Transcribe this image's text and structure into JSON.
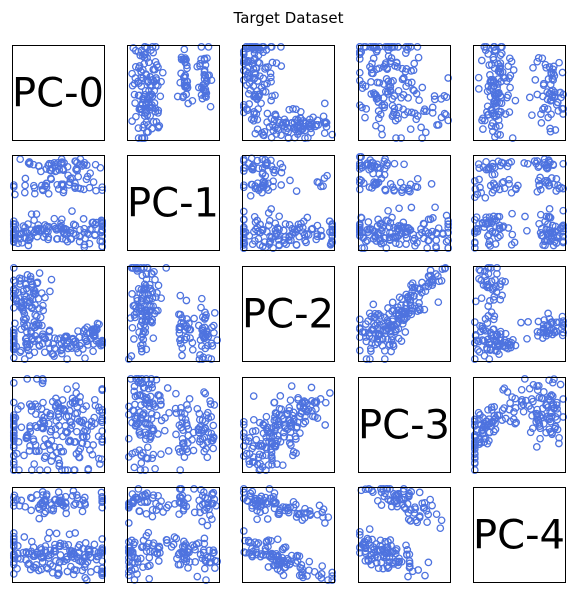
{
  "chart_data": {
    "type": "scatter",
    "subtype": "pairplot",
    "title": "Target Dataset",
    "variables": [
      "PC-0",
      "PC-1",
      "PC-2",
      "PC-3",
      "PC-4"
    ],
    "grid": false,
    "axis_ticks": false,
    "marker": "hollow-circle",
    "marker_color": "#4e73df",
    "panels": [
      {
        "row": 0,
        "col": 1,
        "x": "PC-1",
        "y": "PC-0",
        "pattern": "three vertical clusters; one large dense column on the left, two narrow columns on the right"
      },
      {
        "row": 0,
        "col": 2,
        "x": "PC-2",
        "y": "PC-0",
        "pattern": "dense mass at upper-left descending to a horizontal band along the bottom"
      },
      {
        "row": 0,
        "col": 3,
        "x": "PC-3",
        "y": "PC-0",
        "pattern": "large dense block upper-left with scattered points to the right"
      },
      {
        "row": 0,
        "col": 4,
        "x": "PC-4",
        "y": "PC-0",
        "pattern": "tall cluster on left and shorter cluster on right"
      },
      {
        "row": 1,
        "col": 0,
        "x": "PC-0",
        "y": "PC-1",
        "pattern": "two thin horizontal bands at top and one thick band at bottom"
      },
      {
        "row": 1,
        "col": 2,
        "x": "PC-2",
        "y": "PC-1",
        "pattern": "two small horizontal bands at top and a wide band at bottom"
      },
      {
        "row": 1,
        "col": 3,
        "x": "PC-3",
        "y": "PC-1",
        "pattern": "two elongated bands at top and a large band at bottom"
      },
      {
        "row": 1,
        "col": 4,
        "x": "PC-4",
        "y": "PC-1",
        "pattern": "six clusters arranged in two columns and three rows"
      },
      {
        "row": 2,
        "col": 0,
        "x": "PC-0",
        "y": "PC-2",
        "pattern": "L-shaped mass: vertical on left, horizontal band along bottom"
      },
      {
        "row": 2,
        "col": 1,
        "x": "PC-1",
        "y": "PC-2",
        "pattern": "three vertical clusters"
      },
      {
        "row": 2,
        "col": 3,
        "x": "PC-3",
        "y": "PC-2",
        "pattern": "diagonal rising streaks from lower-left to upper-right"
      },
      {
        "row": 2,
        "col": 4,
        "x": "PC-4",
        "y": "PC-2",
        "pattern": "vertical cluster upper-left, blob lower-left, small blob lower-right"
      },
      {
        "row": 3,
        "col": 0,
        "x": "PC-0",
        "y": "PC-3",
        "pattern": "broad dense mass filling most of the panel"
      },
      {
        "row": 3,
        "col": 1,
        "x": "PC-1",
        "y": "PC-3",
        "pattern": "three vertical clusters"
      },
      {
        "row": 3,
        "col": 2,
        "x": "PC-2",
        "y": "PC-3",
        "pattern": "wedge opening from lower-left to upper-right"
      },
      {
        "row": 3,
        "col": 4,
        "x": "PC-4",
        "y": "PC-3",
        "pattern": "descending diagonal cluster on left and compact cluster on right"
      },
      {
        "row": 4,
        "col": 0,
        "x": "PC-0",
        "y": "PC-4",
        "pattern": "horizontal band at top and wider band at bottom"
      },
      {
        "row": 4,
        "col": 1,
        "x": "PC-1",
        "y": "PC-4",
        "pattern": "six clusters in three columns and two rows"
      },
      {
        "row": 4,
        "col": 2,
        "x": "PC-2",
        "y": "PC-4",
        "pattern": "two descending streaks, upper-left to lower-right"
      },
      {
        "row": 4,
        "col": 3,
        "x": "PC-3",
        "y": "PC-4",
        "pattern": "two diagonal descending bands"
      }
    ]
  }
}
